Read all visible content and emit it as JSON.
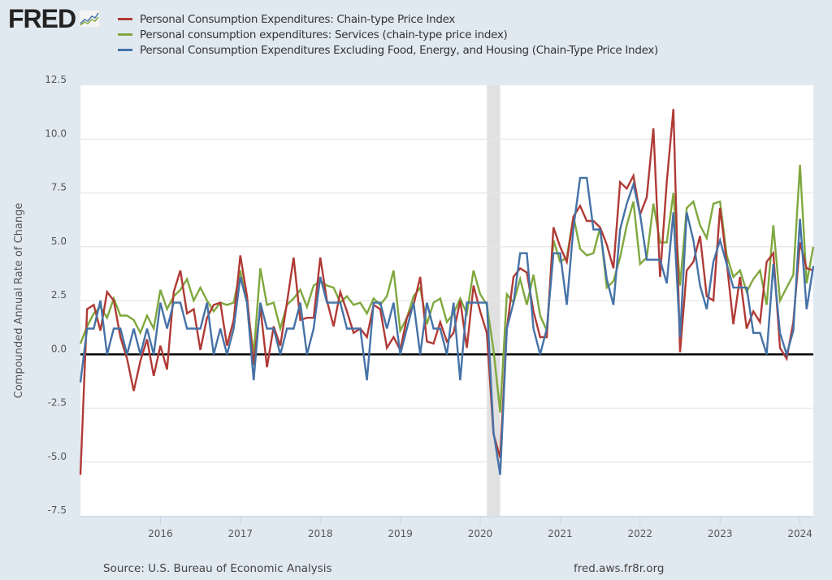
{
  "logo": {
    "text": "FRED",
    "icon": "fred-chart-icon"
  },
  "footer": {
    "source": "Source: U.S. Bureau of Economic Analysis",
    "site": "fred.aws.fr8r.org"
  },
  "chart_data": {
    "type": "line",
    "title": "",
    "xlabel": "",
    "ylabel": "Compounded Annual Rate of Change",
    "ylim": [
      -7.5,
      12.5
    ],
    "yticks": [
      "12.5",
      "10.0",
      "7.5",
      "5.0",
      "2.5",
      "0.0",
      "-2.5",
      "-5.0",
      "-7.5"
    ],
    "ytick_values": [
      12.5,
      10.0,
      7.5,
      5.0,
      2.5,
      0.0,
      -2.5,
      -5.0,
      -7.5
    ],
    "xticks": [
      "2016",
      "2017",
      "2018",
      "2019",
      "2020",
      "2021",
      "2022",
      "2023",
      "2024"
    ],
    "x_start": "2015-01",
    "x_end": "2024-03",
    "frequency": "monthly",
    "grid": true,
    "legend": "top",
    "recession": {
      "start": "2020-02",
      "end": "2020-04"
    },
    "series": [
      {
        "name": "Personal Consumption Expenditures: Chain-type Price Index",
        "color": "#b03a35",
        "values": [
          -5.6,
          2.1,
          2.3,
          1.1,
          2.9,
          2.5,
          0.8,
          -0.2,
          -1.7,
          -0.3,
          0.7,
          -1.0,
          0.4,
          -0.7,
          2.9,
          3.9,
          1.9,
          2.1,
          0.2,
          1.7,
          2.3,
          2.4,
          0.4,
          1.6,
          4.6,
          2.7,
          -0.5,
          2.2,
          -0.6,
          1.3,
          0.4,
          2.4,
          4.5,
          1.6,
          1.7,
          1.7,
          4.5,
          2.5,
          1.3,
          2.9,
          2.0,
          1.0,
          1.2,
          0.8,
          2.3,
          2.1,
          0.3,
          0.8,
          0.2,
          1.7,
          2.3,
          3.6,
          0.6,
          0.5,
          1.5,
          0.6,
          1.0,
          2.5,
          0.3,
          3.2,
          2.0,
          1.0,
          -3.7,
          -4.8,
          1.2,
          3.6,
          4.0,
          3.8,
          2.0,
          0.8,
          0.8,
          5.9,
          5.0,
          4.3,
          6.4,
          6.9,
          6.2,
          6.2,
          5.9,
          5.1,
          4.0,
          8.0,
          7.7,
          8.3,
          6.5,
          7.3,
          10.5,
          3.6,
          8.0,
          11.4,
          0.1,
          3.9,
          4.3,
          5.5,
          2.7,
          2.5,
          6.8,
          4.3,
          1.4,
          3.6,
          1.2,
          2.0,
          1.5,
          4.3,
          4.7,
          0.3,
          -0.2,
          1.5,
          5.2,
          4.0,
          3.9
        ]
      },
      {
        "name": "Personal consumption expenditures: Services (chain-type price index)",
        "color": "#7fa83e",
        "values": [
          0.5,
          1.3,
          1.9,
          2.2,
          1.7,
          2.6,
          1.8,
          1.8,
          1.6,
          1.0,
          1.8,
          1.2,
          3.0,
          2.1,
          2.7,
          3.0,
          3.5,
          2.5,
          3.1,
          2.5,
          2.0,
          2.4,
          2.3,
          2.4,
          3.9,
          2.4,
          0.0,
          4.0,
          2.3,
          2.4,
          1.2,
          2.3,
          2.6,
          3.0,
          2.2,
          3.2,
          3.4,
          3.2,
          3.1,
          2.4,
          2.7,
          2.3,
          2.4,
          1.9,
          2.6,
          2.3,
          2.7,
          3.9,
          1.1,
          1.7,
          2.7,
          3.1,
          1.4,
          2.4,
          2.6,
          1.5,
          1.9,
          2.6,
          1.9,
          3.9,
          2.8,
          2.3,
          0.2,
          -2.7,
          2.8,
          2.4,
          3.5,
          2.3,
          3.7,
          1.8,
          1.1,
          5.3,
          4.3,
          4.5,
          6.4,
          4.9,
          4.6,
          4.7,
          5.9,
          3.1,
          3.4,
          4.5,
          6.0,
          7.1,
          4.2,
          4.5,
          7.0,
          5.2,
          5.2,
          7.5,
          3.2,
          6.8,
          7.1,
          6.0,
          5.4,
          7.0,
          7.1,
          4.6,
          3.6,
          3.9,
          2.9,
          3.5,
          3.9,
          2.3,
          6.0,
          2.5,
          3.1,
          3.7,
          8.8,
          3.3,
          5.0
        ]
      },
      {
        "name": "Personal Consumption Expenditures Excluding Food, Energy, and Housing (Chain-Type Price Index)",
        "color": "#4572a7",
        "values": [
          -1.3,
          1.2,
          1.2,
          2.5,
          0.0,
          1.2,
          1.2,
          0.0,
          1.2,
          0.0,
          1.2,
          0.0,
          2.4,
          1.2,
          2.4,
          2.4,
          1.2,
          1.2,
          1.2,
          2.4,
          0.0,
          1.2,
          0.0,
          1.2,
          3.6,
          2.4,
          -1.2,
          2.4,
          1.2,
          1.2,
          0.0,
          1.2,
          1.2,
          2.4,
          0.0,
          1.2,
          3.6,
          2.4,
          2.4,
          2.4,
          1.2,
          1.2,
          1.2,
          -1.2,
          2.4,
          2.4,
          1.2,
          2.4,
          0.0,
          1.2,
          2.4,
          0.0,
          2.4,
          1.2,
          1.2,
          0.0,
          2.4,
          -1.2,
          2.4,
          2.4,
          2.4,
          2.4,
          -3.6,
          -5.6,
          1.2,
          2.4,
          4.7,
          4.7,
          1.2,
          0.0,
          1.2,
          4.7,
          4.7,
          2.3,
          5.9,
          8.2,
          8.2,
          5.8,
          5.8,
          3.5,
          2.3,
          5.8,
          7.0,
          7.9,
          6.5,
          4.4,
          4.4,
          4.4,
          3.3,
          6.6,
          0.8,
          6.6,
          5.3,
          3.2,
          2.1,
          4.3,
          5.3,
          4.2,
          3.1,
          3.1,
          3.1,
          1.0,
          1.0,
          0.0,
          4.2,
          1.0,
          0.0,
          1.1,
          6.3,
          2.1,
          4.1
        ]
      }
    ]
  }
}
